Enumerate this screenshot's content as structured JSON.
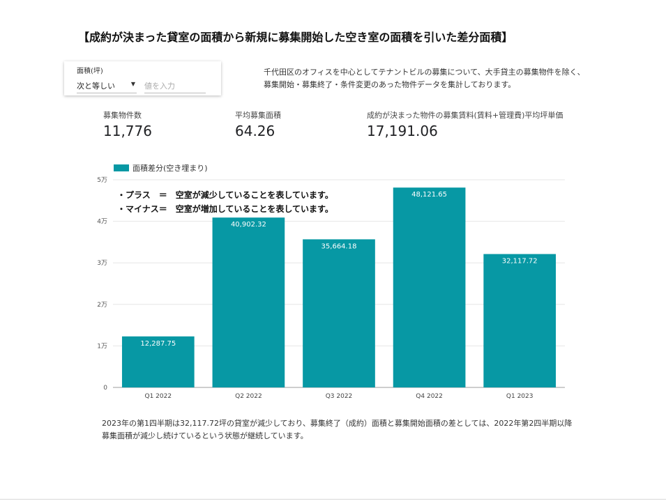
{
  "title": "【成約が決まった貸室の面積から新規に募集開始した空き室の面積を引いた差分面積】",
  "filter": {
    "label": "面積(坪)",
    "operator": "次と等しい",
    "placeholder": "値を入力"
  },
  "description": {
    "line1": "千代田区のオフィスを中心としてテナントビルの募集について、大手貸主の募集物件を除く、",
    "line2": "募集開始・募集終了・条件変更のあった物件データを集計しております。"
  },
  "kpis": [
    {
      "label": "募集物件数",
      "value": "11,776"
    },
    {
      "label": "平均募集面積",
      "value": "64.26"
    },
    {
      "label": "成約が決まった物件の募集賃料(賃料+管理費)平均坪単価",
      "value": "17,191.06"
    }
  ],
  "notes": {
    "line1": "・プラス　＝　空室が減少していることを表しています。",
    "line2": "・マイナス＝　空室が増加していることを表しています。"
  },
  "footer": {
    "line1": "2023年の第1四半期は32,117.72坪の貸室が減少しており、募集終了（成約）面積と募集開始面積の差としては、2022年第2四半期以降",
    "line2": "募集面積が減少し続けているという状態が継続しています。"
  },
  "colors": {
    "bar": "#0798a4",
    "grid": "#e6e6e6",
    "axis": "#9e9e9e"
  },
  "chart_data": {
    "type": "bar",
    "categories": [
      "Q1 2022",
      "Q2 2022",
      "Q3 2022",
      "Q4 2022",
      "Q1 2023"
    ],
    "series": [
      {
        "name": "面積差分(空き埋まり)",
        "values": [
          12287.75,
          40902.32,
          35664.18,
          48121.65,
          32117.72
        ]
      }
    ],
    "data_labels": [
      "12,287.75",
      "40,902.32",
      "35,664.18",
      "48,121.65",
      "32,117.72"
    ],
    "ylim": [
      0,
      50000
    ],
    "yticks": [
      0,
      10000,
      20000,
      30000,
      40000,
      50000
    ],
    "ytick_labels": [
      "0",
      "1万",
      "2万",
      "3万",
      "4万",
      "5万"
    ],
    "grid": true,
    "legend": "top-left"
  }
}
